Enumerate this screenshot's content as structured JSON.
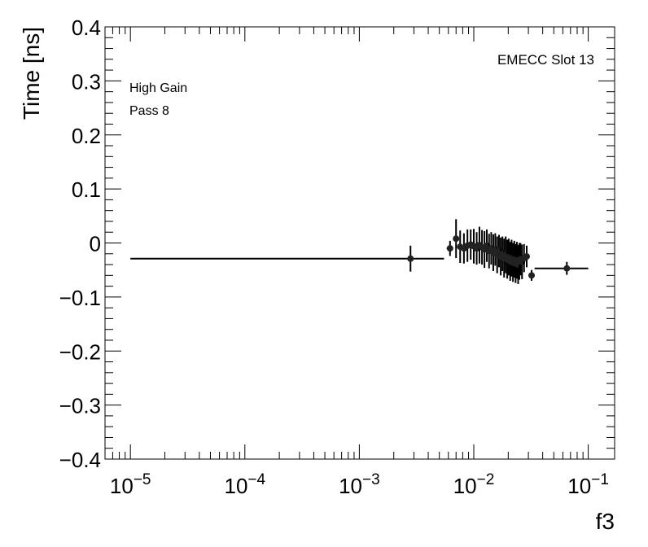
{
  "chart_data": {
    "type": "scatter",
    "xlabel": "f3",
    "ylabel": "Time [ns]",
    "x_scale": "log",
    "xlim": [
      6e-06,
      0.17
    ],
    "ylim": [
      -0.4,
      0.4
    ],
    "grid": false,
    "legend": "none",
    "x_ticks": [
      1e-05,
      0.0001,
      0.001,
      0.01,
      0.1
    ],
    "x_tick_base": "10",
    "x_tick_exponents": [
      "−5",
      "−4",
      "−3",
      "−2",
      "−1"
    ],
    "y_ticks": [
      -0.4,
      -0.3,
      -0.2,
      -0.1,
      0,
      0.1,
      0.2,
      0.3,
      0.4
    ],
    "y_tick_labels": [
      "−0.4",
      "−0.3",
      "−0.2",
      "−0.1",
      "0",
      "0.1",
      "0.2",
      "0.3",
      "0.4"
    ],
    "annotations": {
      "top_right": "EMECC Slot 13",
      "top_left_line1": "High Gain",
      "top_left_line2": "Pass 8"
    },
    "points": [
      {
        "x": 0.0028,
        "y": -0.029,
        "yerr": 0.024,
        "xlo": 1e-05,
        "xhi": 0.0055
      },
      {
        "x": 0.0062,
        "y": -0.01,
        "yerr": 0.014,
        "xlo": 0.0058,
        "xhi": 0.0066
      },
      {
        "x": 0.007,
        "y": 0.008,
        "yerr": 0.036,
        "xlo": 0.0068,
        "xhi": 0.0072
      },
      {
        "x": 0.0076,
        "y": -0.007,
        "yerr": 0.03,
        "xlo": 0.0074,
        "xhi": 0.0078
      },
      {
        "x": 0.0082,
        "y": -0.01,
        "yerr": 0.028,
        "xlo": 0.008,
        "xhi": 0.0084
      },
      {
        "x": 0.0088,
        "y": -0.005,
        "yerr": 0.03,
        "xlo": 0.0086,
        "xhi": 0.009
      },
      {
        "x": 0.0094,
        "y": -0.003,
        "yerr": 0.028,
        "xlo": 0.0092,
        "xhi": 0.0096
      },
      {
        "x": 0.01,
        "y": -0.006,
        "yerr": 0.032,
        "xlo": 0.0098,
        "xhi": 0.0102
      },
      {
        "x": 0.0106,
        "y": -0.01,
        "yerr": 0.03,
        "xlo": 0.0104,
        "xhi": 0.0108
      },
      {
        "x": 0.0112,
        "y": -0.004,
        "yerr": 0.034,
        "xlo": 0.011,
        "xhi": 0.0114
      },
      {
        "x": 0.0118,
        "y": -0.008,
        "yerr": 0.032,
        "xlo": 0.0116,
        "xhi": 0.012
      },
      {
        "x": 0.0124,
        "y": -0.012,
        "yerr": 0.034,
        "xlo": 0.0122,
        "xhi": 0.0126
      },
      {
        "x": 0.013,
        "y": -0.005,
        "yerr": 0.03,
        "xlo": 0.0128,
        "xhi": 0.0132
      },
      {
        "x": 0.0136,
        "y": -0.015,
        "yerr": 0.032,
        "xlo": 0.0134,
        "xhi": 0.0138
      },
      {
        "x": 0.0142,
        "y": -0.01,
        "yerr": 0.03,
        "xlo": 0.014,
        "xhi": 0.0144
      },
      {
        "x": 0.0148,
        "y": -0.018,
        "yerr": 0.034,
        "xlo": 0.0146,
        "xhi": 0.015
      },
      {
        "x": 0.0154,
        "y": -0.012,
        "yerr": 0.03,
        "xlo": 0.0152,
        "xhi": 0.0156
      },
      {
        "x": 0.016,
        "y": -0.022,
        "yerr": 0.034,
        "xlo": 0.0158,
        "xhi": 0.0162
      },
      {
        "x": 0.0166,
        "y": -0.015,
        "yerr": 0.03,
        "xlo": 0.0164,
        "xhi": 0.0168
      },
      {
        "x": 0.0172,
        "y": -0.025,
        "yerr": 0.035,
        "xlo": 0.017,
        "xhi": 0.0174
      },
      {
        "x": 0.0178,
        "y": -0.02,
        "yerr": 0.032,
        "xlo": 0.0176,
        "xhi": 0.018
      },
      {
        "x": 0.0184,
        "y": -0.028,
        "yerr": 0.036,
        "xlo": 0.0182,
        "xhi": 0.0186
      },
      {
        "x": 0.019,
        "y": -0.022,
        "yerr": 0.034,
        "xlo": 0.0188,
        "xhi": 0.0192
      },
      {
        "x": 0.0196,
        "y": -0.03,
        "yerr": 0.036,
        "xlo": 0.0194,
        "xhi": 0.0198
      },
      {
        "x": 0.0202,
        "y": -0.026,
        "yerr": 0.034,
        "xlo": 0.02,
        "xhi": 0.0204
      },
      {
        "x": 0.0208,
        "y": -0.034,
        "yerr": 0.036,
        "xlo": 0.0206,
        "xhi": 0.021
      },
      {
        "x": 0.0214,
        "y": -0.028,
        "yerr": 0.034,
        "xlo": 0.0212,
        "xhi": 0.0216
      },
      {
        "x": 0.022,
        "y": -0.036,
        "yerr": 0.036,
        "xlo": 0.0218,
        "xhi": 0.0222
      },
      {
        "x": 0.0226,
        "y": -0.03,
        "yerr": 0.034,
        "xlo": 0.0224,
        "xhi": 0.0228
      },
      {
        "x": 0.0232,
        "y": -0.038,
        "yerr": 0.036,
        "xlo": 0.023,
        "xhi": 0.0234
      },
      {
        "x": 0.0238,
        "y": -0.032,
        "yerr": 0.034,
        "xlo": 0.0236,
        "xhi": 0.024
      },
      {
        "x": 0.0244,
        "y": -0.04,
        "yerr": 0.036,
        "xlo": 0.0242,
        "xhi": 0.0246
      },
      {
        "x": 0.025,
        "y": -0.034,
        "yerr": 0.034,
        "xlo": 0.0248,
        "xhi": 0.0252
      },
      {
        "x": 0.0256,
        "y": -0.03,
        "yerr": 0.03,
        "xlo": 0.0254,
        "xhi": 0.0258
      },
      {
        "x": 0.0264,
        "y": -0.035,
        "yerr": 0.032,
        "xlo": 0.026,
        "xhi": 0.0268
      },
      {
        "x": 0.0275,
        "y": -0.028,
        "yerr": 0.026,
        "xlo": 0.027,
        "xhi": 0.028
      },
      {
        "x": 0.029,
        "y": -0.025,
        "yerr": 0.02,
        "xlo": 0.0283,
        "xhi": 0.0297
      },
      {
        "x": 0.032,
        "y": -0.06,
        "yerr": 0.01,
        "xlo": 0.031,
        "xhi": 0.033
      },
      {
        "x": 0.065,
        "y": -0.047,
        "yerr": 0.012,
        "xlo": 0.034,
        "xhi": 0.1
      }
    ]
  }
}
